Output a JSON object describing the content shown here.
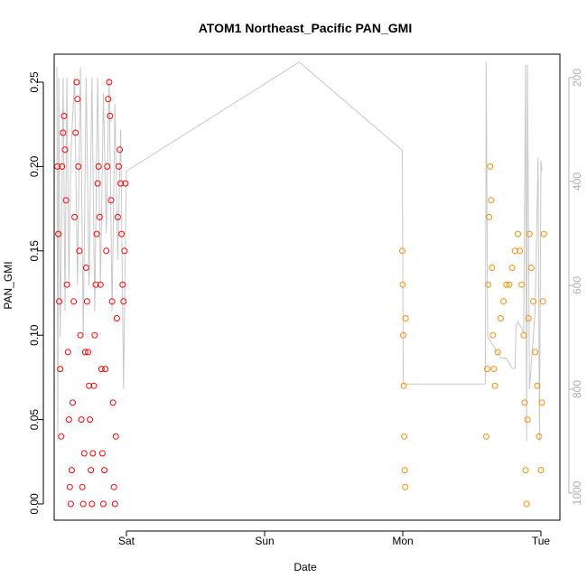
{
  "chart_data": {
    "type": "scatter",
    "title": "ATOM1 Northeast_Pacific PAN_GMI",
    "xlabel": "Date",
    "ylabel": "PAN_GMI",
    "x_ticks": [
      "Sat",
      "Sun",
      "Mon",
      "Tue"
    ],
    "ylim": [
      0,
      0.26
    ],
    "y_ticks": [
      "0.00",
      "0.05",
      "0.10",
      "0.15",
      "0.20",
      "0.25"
    ],
    "y2_ticks": [
      "200",
      "400",
      "600",
      "800",
      "1000"
    ],
    "y2_reversed": true,
    "y2_range": [
      170,
      1030
    ],
    "series": [
      {
        "color": "#ff0000",
        "marker": "open-circle",
        "points": [
          [
            "2016-08-05 12:00",
            0.2
          ],
          [
            "2016-08-05 12:10",
            0.16
          ],
          [
            "2016-08-05 12:20",
            0.12
          ],
          [
            "2016-08-05 12:30",
            0.08
          ],
          [
            "2016-08-05 12:40",
            0.04
          ],
          [
            "2016-08-05 12:50",
            0.2
          ],
          [
            "2016-08-05 13:00",
            0.22
          ],
          [
            "2016-08-05 13:10",
            0.23
          ],
          [
            "2016-08-05 13:20",
            0.21
          ],
          [
            "2016-08-05 13:30",
            0.18
          ],
          [
            "2016-08-05 13:40",
            0.13
          ],
          [
            "2016-08-05 13:50",
            0.09
          ],
          [
            "2016-08-05 14:00",
            0.05
          ],
          [
            "2016-08-05 14:10",
            0.01
          ],
          [
            "2016-08-05 14:20",
            0.0
          ],
          [
            "2016-08-05 14:30",
            0.02
          ],
          [
            "2016-08-05 14:40",
            0.06
          ],
          [
            "2016-08-05 14:50",
            0.12
          ],
          [
            "2016-08-05 15:00",
            0.17
          ],
          [
            "2016-08-05 15:10",
            0.22
          ],
          [
            "2016-08-05 15:20",
            0.25
          ],
          [
            "2016-08-05 15:30",
            0.24
          ],
          [
            "2016-08-05 15:40",
            0.2
          ],
          [
            "2016-08-05 15:50",
            0.15
          ],
          [
            "2016-08-05 16:00",
            0.1
          ],
          [
            "2016-08-05 16:10",
            0.05
          ],
          [
            "2016-08-05 16:20",
            0.01
          ],
          [
            "2016-08-05 16:30",
            0.0
          ],
          [
            "2016-08-05 16:40",
            0.03
          ],
          [
            "2016-08-05 16:50",
            0.09
          ],
          [
            "2016-08-05 17:00",
            0.14
          ],
          [
            "2016-08-05 17:10",
            0.12
          ],
          [
            "2016-08-05 17:20",
            0.09
          ],
          [
            "2016-08-05 17:30",
            0.07
          ],
          [
            "2016-08-05 17:40",
            0.05
          ],
          [
            "2016-08-05 17:50",
            0.02
          ],
          [
            "2016-08-05 18:00",
            0.0
          ],
          [
            "2016-08-05 18:10",
            0.03
          ],
          [
            "2016-08-05 18:20",
            0.07
          ],
          [
            "2016-08-05 18:30",
            0.1
          ],
          [
            "2016-08-05 18:40",
            0.13
          ],
          [
            "2016-08-05 18:50",
            0.16
          ],
          [
            "2016-08-05 19:00",
            0.19
          ],
          [
            "2016-08-05 19:10",
            0.2
          ],
          [
            "2016-08-05 19:20",
            0.17
          ],
          [
            "2016-08-05 19:30",
            0.13
          ],
          [
            "2016-08-05 19:40",
            0.08
          ],
          [
            "2016-08-05 19:50",
            0.03
          ],
          [
            "2016-08-05 20:00",
            0.0
          ],
          [
            "2016-08-05 20:10",
            0.02
          ],
          [
            "2016-08-05 20:20",
            0.08
          ],
          [
            "2016-08-05 20:30",
            0.15
          ],
          [
            "2016-08-05 20:40",
            0.2
          ],
          [
            "2016-08-05 20:50",
            0.24
          ],
          [
            "2016-08-05 21:00",
            0.25
          ],
          [
            "2016-08-05 21:10",
            0.23
          ],
          [
            "2016-08-05 21:20",
            0.18
          ],
          [
            "2016-08-05 21:30",
            0.12
          ],
          [
            "2016-08-05 21:40",
            0.06
          ],
          [
            "2016-08-05 21:50",
            0.01
          ],
          [
            "2016-08-05 22:00",
            0.0
          ],
          [
            "2016-08-05 22:10",
            0.04
          ],
          [
            "2016-08-05 22:20",
            0.11
          ],
          [
            "2016-08-05 22:30",
            0.17
          ],
          [
            "2016-08-05 22:40",
            0.2
          ],
          [
            "2016-08-05 22:50",
            0.21
          ],
          [
            "2016-08-05 23:00",
            0.19
          ],
          [
            "2016-08-05 23:10",
            0.16
          ],
          [
            "2016-08-05 23:20",
            0.13
          ],
          [
            "2016-08-05 23:30",
            0.12
          ],
          [
            "2016-08-05 23:40",
            0.15
          ],
          [
            "2016-08-05 23:50",
            0.19
          ]
        ]
      },
      {
        "color": "#ff8c00",
        "marker": "open-circle",
        "points": [
          [
            "2016-08-07 23:55",
            0.15
          ],
          [
            "2016-08-08 00:00",
            0.13
          ],
          [
            "2016-08-08 00:05",
            0.1
          ],
          [
            "2016-08-08 00:10",
            0.07
          ],
          [
            "2016-08-08 00:15",
            0.04
          ],
          [
            "2016-08-08 00:20",
            0.02
          ],
          [
            "2016-08-08 00:25",
            0.01
          ],
          [
            "2016-08-08 00:30",
            0.11
          ],
          [
            "2016-08-08 14:30",
            0.04
          ],
          [
            "2016-08-08 14:40",
            0.08
          ],
          [
            "2016-08-08 14:50",
            0.13
          ],
          [
            "2016-08-08 15:00",
            0.17
          ],
          [
            "2016-08-08 15:10",
            0.2
          ],
          [
            "2016-08-08 15:20",
            0.18
          ],
          [
            "2016-08-08 15:30",
            0.14
          ],
          [
            "2016-08-08 15:40",
            0.1
          ],
          [
            "2016-08-08 15:50",
            0.08
          ],
          [
            "2016-08-08 16:00",
            0.07
          ],
          [
            "2016-08-08 16:30",
            0.09
          ],
          [
            "2016-08-08 17:00",
            0.11
          ],
          [
            "2016-08-08 17:30",
            0.12
          ],
          [
            "2016-08-08 18:00",
            0.13
          ],
          [
            "2016-08-08 18:30",
            0.13
          ],
          [
            "2016-08-08 19:00",
            0.14
          ],
          [
            "2016-08-08 19:30",
            0.15
          ],
          [
            "2016-08-08 20:00",
            0.16
          ],
          [
            "2016-08-08 20:20",
            0.15
          ],
          [
            "2016-08-08 20:40",
            0.13
          ],
          [
            "2016-08-08 21:00",
            0.1
          ],
          [
            "2016-08-08 21:10",
            0.06
          ],
          [
            "2016-08-08 21:20",
            0.02
          ],
          [
            "2016-08-08 21:30",
            0.0
          ],
          [
            "2016-08-08 21:40",
            0.05
          ],
          [
            "2016-08-08 21:50",
            0.11
          ],
          [
            "2016-08-08 22:00",
            0.16
          ],
          [
            "2016-08-08 22:20",
            0.14
          ],
          [
            "2016-08-08 22:40",
            0.12
          ],
          [
            "2016-08-08 23:00",
            0.09
          ],
          [
            "2016-08-08 23:20",
            0.07
          ],
          [
            "2016-08-08 23:40",
            0.04
          ],
          [
            "2016-08-09 00:00",
            0.02
          ],
          [
            "2016-08-09 00:10",
            0.06
          ],
          [
            "2016-08-09 00:20",
            0.12
          ],
          [
            "2016-08-09 00:30",
            0.16
          ]
        ]
      }
    ],
    "secondary_line": {
      "color": "#c8c8c8",
      "note_y_axis": "right",
      "points": [
        [
          "2016-08-05 11:55",
          180
        ],
        [
          "2016-08-05 12:05",
          900
        ],
        [
          "2016-08-05 12:15",
          200
        ],
        [
          "2016-08-05 12:30",
          700
        ],
        [
          "2016-08-05 13:00",
          200
        ],
        [
          "2016-08-05 13:20",
          650
        ],
        [
          "2016-08-05 13:40",
          200
        ],
        [
          "2016-08-05 14:00",
          600
        ],
        [
          "2016-08-05 14:20",
          350
        ],
        [
          "2016-08-05 15:00",
          200
        ],
        [
          "2016-08-05 15:30",
          600
        ],
        [
          "2016-08-05 16:00",
          180
        ],
        [
          "2016-08-05 16:30",
          700
        ],
        [
          "2016-08-05 17:00",
          200
        ],
        [
          "2016-08-05 17:30",
          600
        ],
        [
          "2016-08-05 18:00",
          200
        ],
        [
          "2016-08-05 18:30",
          650
        ],
        [
          "2016-08-05 19:00",
          200
        ],
        [
          "2016-08-05 19:30",
          600
        ],
        [
          "2016-08-05 20:00",
          230
        ],
        [
          "2016-08-05 20:30",
          500
        ],
        [
          "2016-08-05 21:00",
          200
        ],
        [
          "2016-08-05 21:30",
          650
        ],
        [
          "2016-08-05 22:00",
          250
        ],
        [
          "2016-08-05 22:30",
          550
        ],
        [
          "2016-08-05 23:00",
          300
        ],
        [
          "2016-08-05 23:30",
          800
        ],
        [
          "2016-08-05 23:59",
          380
        ],
        [
          "2016-08-07 06:00",
          170
        ],
        [
          "2016-08-07 23:55",
          340
        ],
        [
          "2016-08-08 00:05",
          780
        ],
        [
          "2016-08-08 00:10",
          790
        ],
        [
          "2016-08-08 14:20",
          790
        ],
        [
          "2016-08-08 14:30",
          170
        ],
        [
          "2016-08-08 14:45",
          700
        ],
        [
          "2016-08-08 16:00",
          720
        ],
        [
          "2016-08-08 17:00",
          740
        ],
        [
          "2016-08-08 18:00",
          740
        ],
        [
          "2016-08-08 19:00",
          760
        ],
        [
          "2016-08-08 19:30",
          760
        ],
        [
          "2016-08-08 19:40",
          680
        ],
        [
          "2016-08-08 20:00",
          670
        ],
        [
          "2016-08-08 21:00",
          690
        ],
        [
          "2016-08-08 21:20",
          175
        ],
        [
          "2016-08-08 21:30",
          900
        ],
        [
          "2016-08-08 21:40",
          175
        ],
        [
          "2016-08-08 22:00",
          800
        ],
        [
          "2016-08-08 23:00",
          650
        ],
        [
          "2016-08-08 23:30",
          355
        ],
        [
          "2016-08-08 23:45",
          900
        ],
        [
          "2016-08-09 00:00",
          360
        ],
        [
          "2016-08-09 00:10",
          380
        ]
      ]
    }
  }
}
